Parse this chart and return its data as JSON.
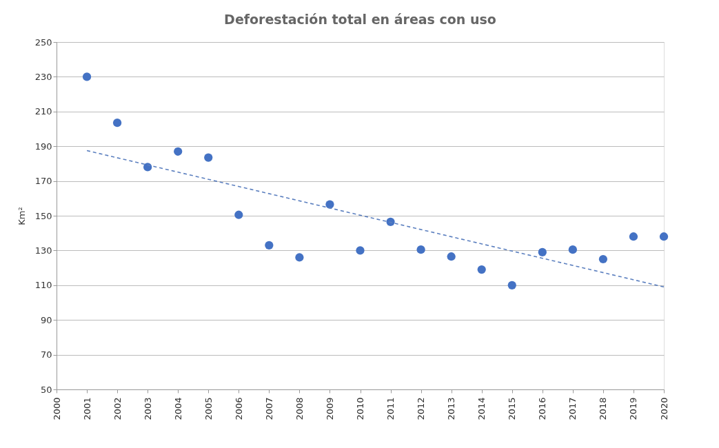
{
  "chart_data": {
    "type": "scatter",
    "title": "Deforestación total en áreas con uso",
    "ylabel": "Km²",
    "x": [
      2001,
      2002,
      2003,
      2004,
      2005,
      2006,
      2007,
      2008,
      2009,
      2010,
      2011,
      2012,
      2013,
      2014,
      2015,
      2016,
      2017,
      2018,
      2019,
      2020
    ],
    "series": [
      {
        "color": "#4472c4",
        "marker": "circle",
        "values": [
          230,
          203.5,
          178,
          187,
          183.5,
          150.5,
          133,
          126,
          156.5,
          130,
          146.5,
          130.5,
          126.5,
          119,
          110,
          129,
          130.5,
          125,
          138,
          138
        ]
      },
      {
        "type": "line",
        "color": "#5b7fbf",
        "line_style": "dashed",
        "x": [
          2001,
          2020
        ],
        "values": [
          187.5,
          109
        ]
      }
    ],
    "xlim": [
      2000,
      2020
    ],
    "xticks": [
      2000,
      2001,
      2002,
      2003,
      2004,
      2005,
      2006,
      2007,
      2008,
      2009,
      2010,
      2011,
      2012,
      2013,
      2014,
      2015,
      2016,
      2017,
      2018,
      2019,
      2020
    ],
    "ylim": [
      50,
      250
    ],
    "yticks": [
      50,
      70,
      90,
      110,
      130,
      150,
      170,
      190,
      210,
      230,
      250
    ],
    "grid": "y"
  }
}
